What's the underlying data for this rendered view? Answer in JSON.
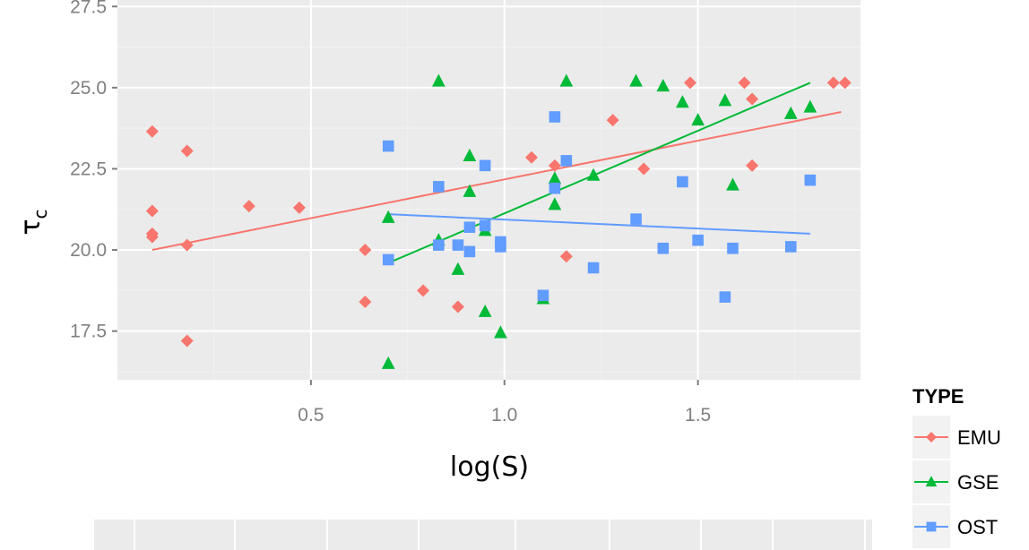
{
  "chart_data": {
    "type": "scatter",
    "title": "",
    "xlabel": "log(S)",
    "ylabel": "τ",
    "ylabel_subscript": "c",
    "xlim": [
      0.0,
      1.92
    ],
    "ylim": [
      16.0,
      27.7
    ],
    "x_ticks": [
      0.5,
      1.0,
      1.5
    ],
    "x_tick_labels": [
      "0.5",
      "1.0",
      "1.5"
    ],
    "y_ticks": [
      17.5,
      20.0,
      22.5,
      25.0,
      27.5
    ],
    "y_tick_labels": [
      "17.5",
      "20.0",
      "22.5",
      "25.0",
      "27.5"
    ],
    "grid": true,
    "background": "#ebebeb",
    "legend": {
      "title": "TYPE",
      "position": "right"
    },
    "series": [
      {
        "name": "EMU",
        "color": "#f8766d",
        "marker": "diamond",
        "trend": {
          "x": [
            0.09,
            1.87
          ],
          "y": [
            20.0,
            24.25
          ]
        },
        "points": [
          {
            "x": 0.09,
            "y": 23.65
          },
          {
            "x": 0.09,
            "y": 21.2
          },
          {
            "x": 0.09,
            "y": 20.5
          },
          {
            "x": 0.09,
            "y": 20.4
          },
          {
            "x": 0.18,
            "y": 23.05
          },
          {
            "x": 0.18,
            "y": 20.15
          },
          {
            "x": 0.18,
            "y": 17.2
          },
          {
            "x": 0.34,
            "y": 21.35
          },
          {
            "x": 0.47,
            "y": 21.3
          },
          {
            "x": 0.64,
            "y": 20.0
          },
          {
            "x": 0.64,
            "y": 18.4
          },
          {
            "x": 0.79,
            "y": 18.75
          },
          {
            "x": 0.88,
            "y": 18.25
          },
          {
            "x": 1.07,
            "y": 22.85
          },
          {
            "x": 1.13,
            "y": 22.6
          },
          {
            "x": 1.16,
            "y": 19.8
          },
          {
            "x": 1.28,
            "y": 24.0
          },
          {
            "x": 1.36,
            "y": 22.5
          },
          {
            "x": 1.48,
            "y": 25.15
          },
          {
            "x": 1.62,
            "y": 25.15
          },
          {
            "x": 1.64,
            "y": 24.65
          },
          {
            "x": 1.64,
            "y": 22.6
          },
          {
            "x": 1.85,
            "y": 25.15
          },
          {
            "x": 1.88,
            "y": 25.15
          }
        ]
      },
      {
        "name": "GSE",
        "color": "#00ba38",
        "marker": "triangle",
        "trend": {
          "x": [
            0.7,
            1.79
          ],
          "y": [
            19.6,
            25.15
          ]
        },
        "points": [
          {
            "x": 0.7,
            "y": 21.0
          },
          {
            "x": 0.7,
            "y": 16.5
          },
          {
            "x": 0.83,
            "y": 25.2
          },
          {
            "x": 0.83,
            "y": 20.3
          },
          {
            "x": 0.88,
            "y": 19.4
          },
          {
            "x": 0.91,
            "y": 22.9
          },
          {
            "x": 0.91,
            "y": 21.8
          },
          {
            "x": 0.95,
            "y": 20.6
          },
          {
            "x": 0.95,
            "y": 18.1
          },
          {
            "x": 0.99,
            "y": 17.45
          },
          {
            "x": 1.1,
            "y": 18.5
          },
          {
            "x": 1.13,
            "y": 22.2
          },
          {
            "x": 1.13,
            "y": 21.4
          },
          {
            "x": 1.16,
            "y": 25.2
          },
          {
            "x": 1.23,
            "y": 22.3
          },
          {
            "x": 1.34,
            "y": 25.2
          },
          {
            "x": 1.41,
            "y": 25.05
          },
          {
            "x": 1.46,
            "y": 24.55
          },
          {
            "x": 1.5,
            "y": 24.0
          },
          {
            "x": 1.57,
            "y": 24.6
          },
          {
            "x": 1.59,
            "y": 22.0
          },
          {
            "x": 1.74,
            "y": 24.2
          },
          {
            "x": 1.79,
            "y": 24.4
          }
        ]
      },
      {
        "name": "OST",
        "color": "#619cff",
        "marker": "square",
        "trend": {
          "x": [
            0.7,
            1.79
          ],
          "y": [
            21.1,
            20.5
          ]
        },
        "points": [
          {
            "x": 0.7,
            "y": 23.2
          },
          {
            "x": 0.7,
            "y": 19.7
          },
          {
            "x": 0.83,
            "y": 21.95
          },
          {
            "x": 0.83,
            "y": 20.15
          },
          {
            "x": 0.88,
            "y": 20.15
          },
          {
            "x": 0.91,
            "y": 20.7
          },
          {
            "x": 0.91,
            "y": 19.95
          },
          {
            "x": 0.95,
            "y": 22.6
          },
          {
            "x": 0.95,
            "y": 20.75
          },
          {
            "x": 0.99,
            "y": 20.25
          },
          {
            "x": 0.99,
            "y": 20.1
          },
          {
            "x": 1.1,
            "y": 18.6
          },
          {
            "x": 1.13,
            "y": 24.1
          },
          {
            "x": 1.13,
            "y": 21.9
          },
          {
            "x": 1.16,
            "y": 22.75
          },
          {
            "x": 1.23,
            "y": 19.45
          },
          {
            "x": 1.34,
            "y": 20.95
          },
          {
            "x": 1.41,
            "y": 20.05
          },
          {
            "x": 1.46,
            "y": 22.1
          },
          {
            "x": 1.5,
            "y": 20.3
          },
          {
            "x": 1.57,
            "y": 18.55
          },
          {
            "x": 1.59,
            "y": 20.05
          },
          {
            "x": 1.74,
            "y": 20.1
          },
          {
            "x": 1.79,
            "y": 22.15
          }
        ]
      }
    ]
  }
}
